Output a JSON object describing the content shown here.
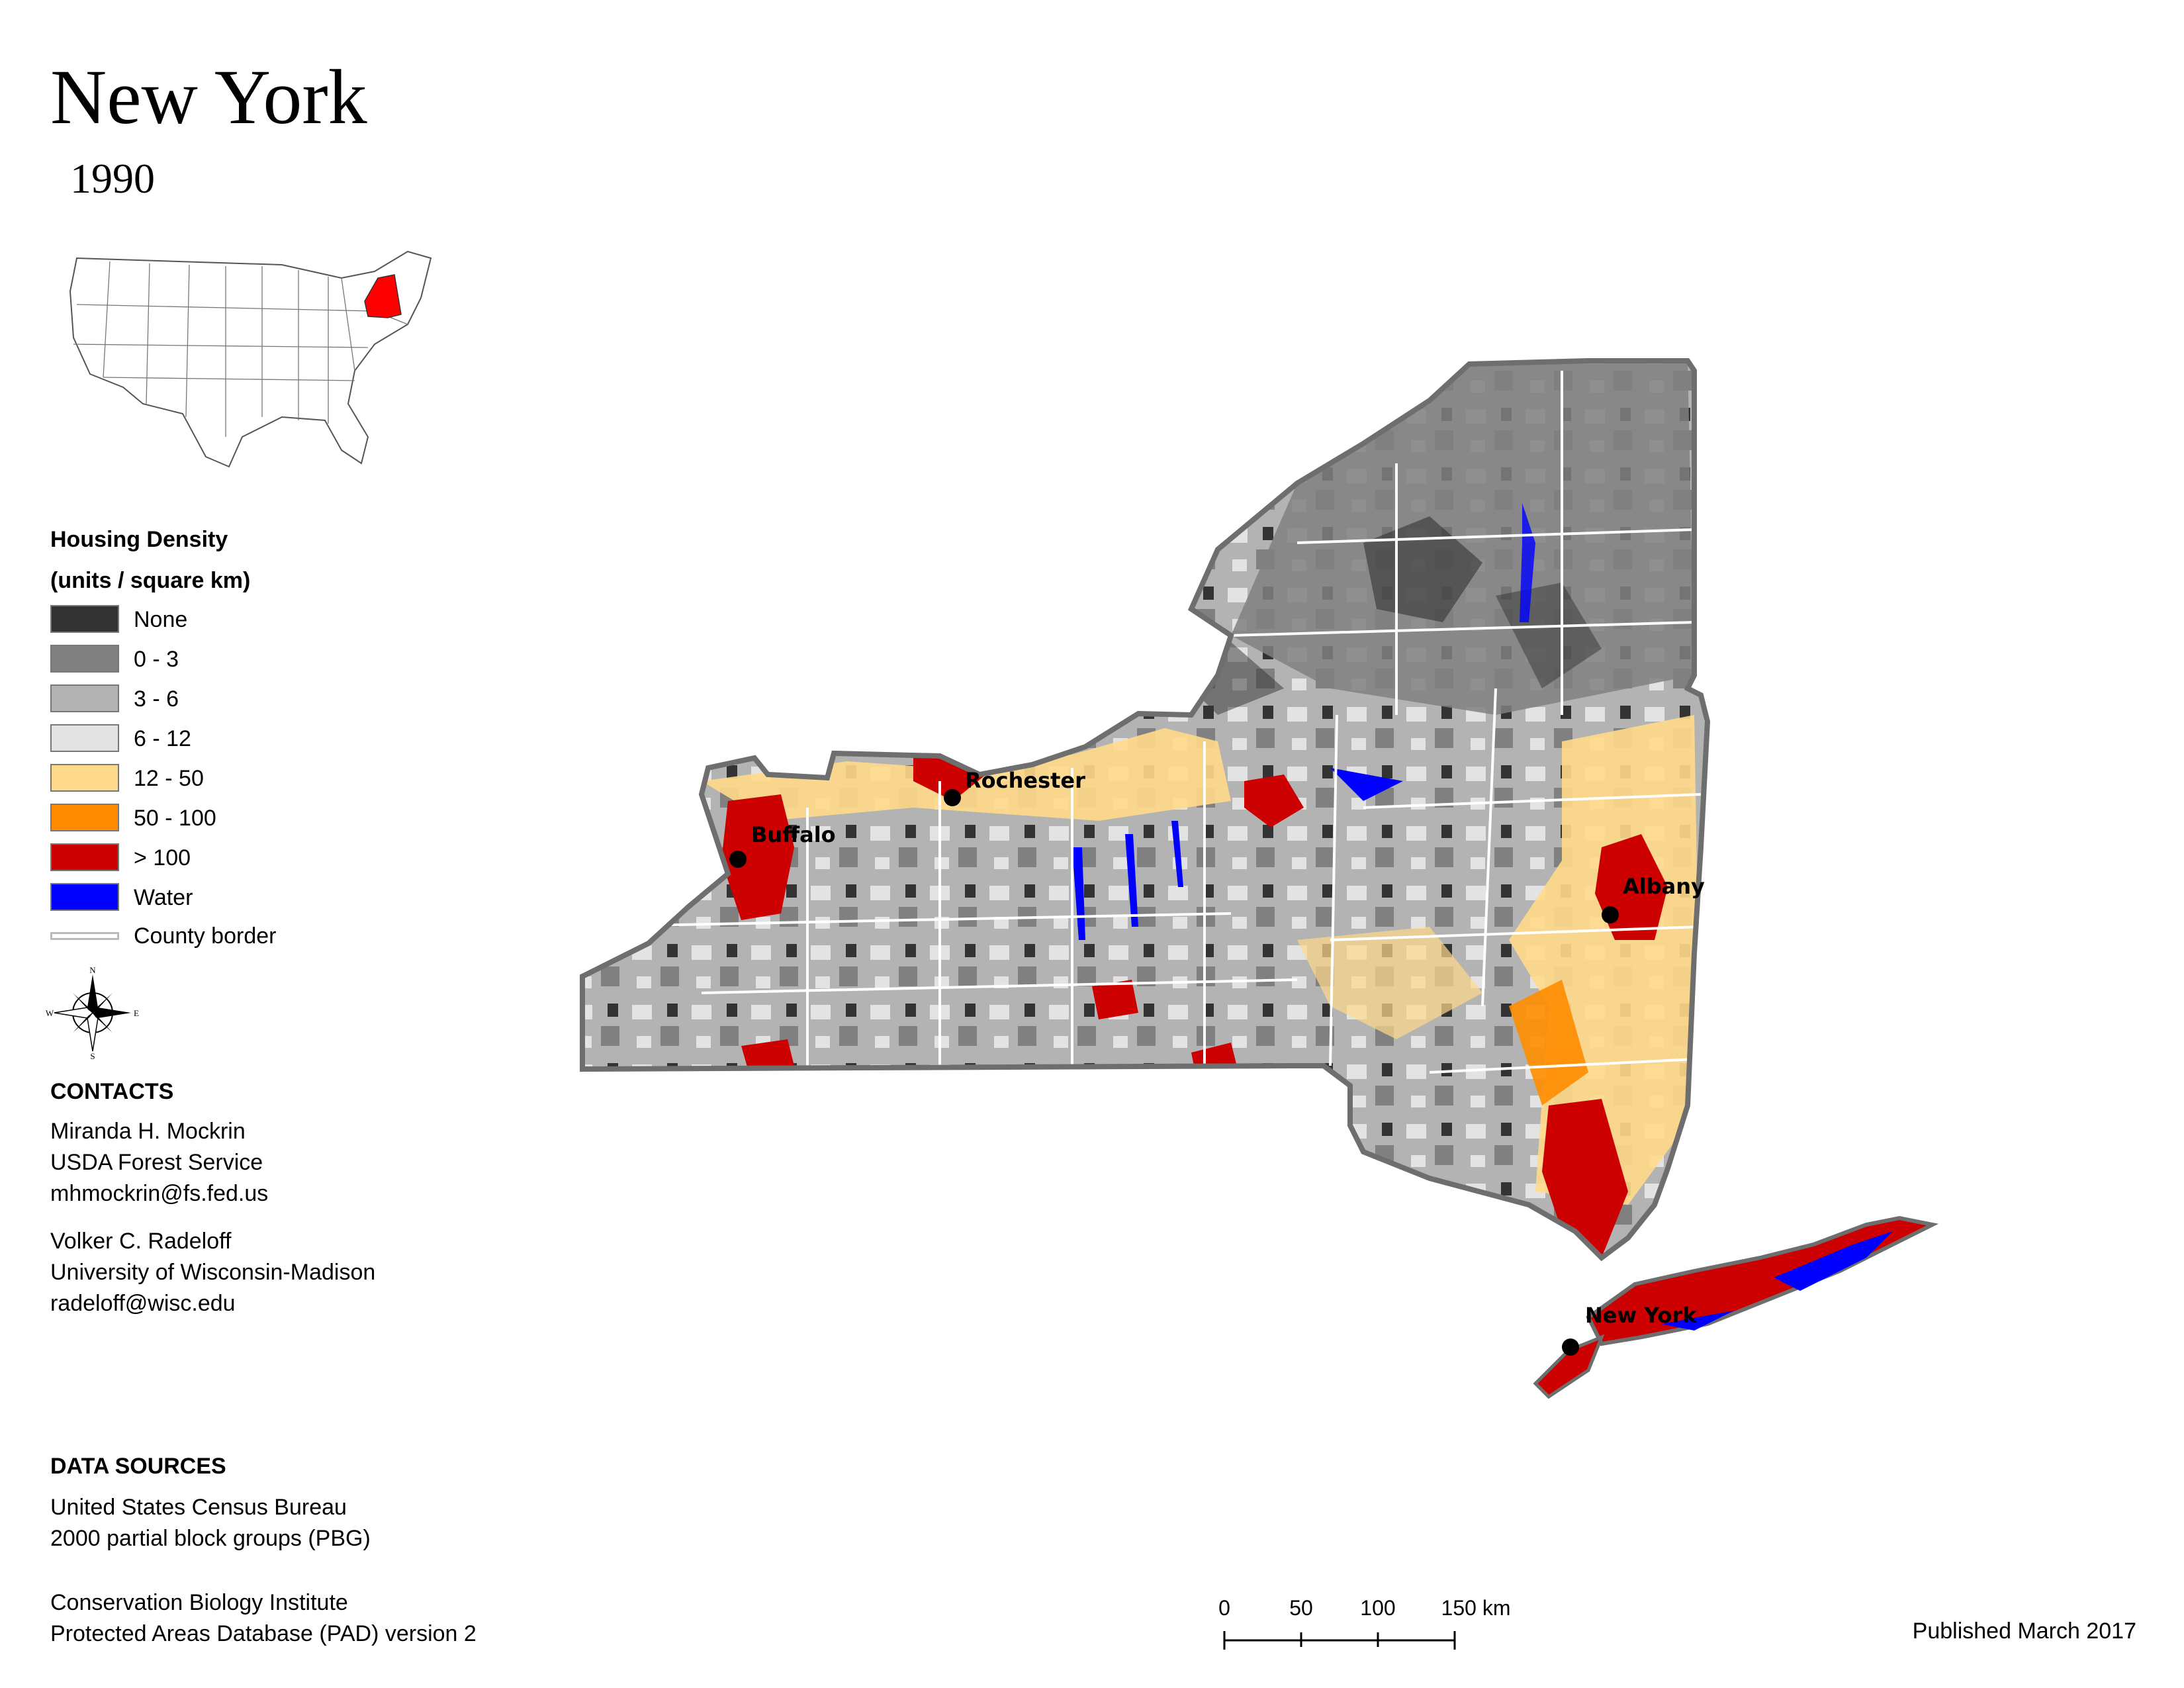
{
  "title": "New York",
  "year": "1990",
  "legend": {
    "title": "Housing Density",
    "subtitle": "(units / square km)",
    "items": [
      {
        "label": "None",
        "color": "#333333"
      },
      {
        "label": "0 - 3",
        "color": "#808080"
      },
      {
        "label": "3 - 6",
        "color": "#b3b3b3"
      },
      {
        "label": "6 - 12",
        "color": "#e3e3e3"
      },
      {
        "label": "12 - 50",
        "color": "#ffd98a"
      },
      {
        "label": "50 - 100",
        "color": "#ff8c00"
      },
      {
        "label": "> 100",
        "color": "#cc0000"
      },
      {
        "label": "Water",
        "color": "#0000ff"
      },
      {
        "label": "County border",
        "color": "#cccccc"
      }
    ]
  },
  "compass": {
    "n": "N",
    "s": "S",
    "e": "E",
    "w": "W"
  },
  "contacts": {
    "heading": "CONTACTS",
    "people": [
      {
        "name": "Miranda H. Mockrin",
        "org": "USDA Forest Service",
        "email": "mhmockrin@fs.fed.us"
      },
      {
        "name": "Volker C. Radeloff",
        "org": "University of Wisconsin-Madison",
        "email": "radeloff@wisc.edu"
      }
    ]
  },
  "data_sources": {
    "heading": "DATA SOURCES",
    "sources": [
      {
        "line1": "United States Census Bureau",
        "line2": "2000 partial block groups (PBG)"
      },
      {
        "line1": "Conservation Biology Institute",
        "line2": "Protected Areas Database (PAD) version 2"
      }
    ]
  },
  "cities": [
    {
      "name": "Rochester"
    },
    {
      "name": "Buffalo"
    },
    {
      "name": "Albany"
    },
    {
      "name": "New York"
    }
  ],
  "scale": {
    "ticks": [
      "0",
      "50",
      "100",
      "150 km"
    ]
  },
  "published": "Published March 2017",
  "highlight_color": "#ff0000"
}
